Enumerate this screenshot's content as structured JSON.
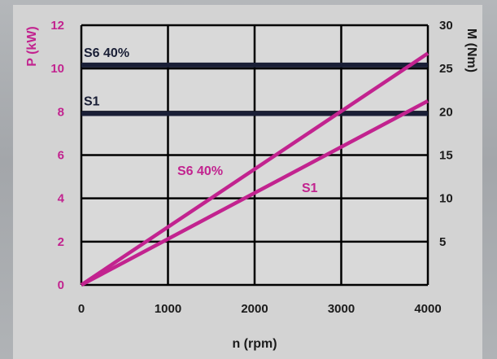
{
  "chart_data": {
    "type": "line",
    "x_axis": {
      "label": "n (rpm)",
      "range": [
        0,
        4000
      ],
      "ticks": [
        "0",
        "1000",
        "2000",
        "3000",
        "4000"
      ]
    },
    "y_axis_left": {
      "label": "P (kW)",
      "range": [
        0,
        12
      ],
      "ticks": [
        "0",
        "2",
        "4",
        "6",
        "8",
        "10",
        "12"
      ],
      "color": "#c2238f"
    },
    "y_axis_right": {
      "label": "M (Nm)",
      "range": [
        0,
        30
      ],
      "ticks": [
        "5",
        "10",
        "15",
        "20",
        "25",
        "30"
      ]
    },
    "grid": true,
    "series": [
      {
        "name": "S6 40%",
        "axis": "right",
        "kind": "torque",
        "color": "#1a1f36",
        "x": [
          0,
          4000
        ],
        "y": [
          25.4,
          25.4
        ]
      },
      {
        "name": "S1",
        "axis": "right",
        "kind": "torque",
        "color": "#1a1f36",
        "x": [
          0,
          4000
        ],
        "y": [
          19.8,
          19.8
        ]
      },
      {
        "name": "S6 40%",
        "axis": "left",
        "kind": "power",
        "color": "#c2238f",
        "x": [
          0,
          4000
        ],
        "y": [
          0,
          10.7
        ]
      },
      {
        "name": "S1",
        "axis": "left",
        "kind": "power",
        "color": "#c2238f",
        "x": [
          0,
          4000
        ],
        "y": [
          0,
          8.5
        ]
      }
    ]
  }
}
